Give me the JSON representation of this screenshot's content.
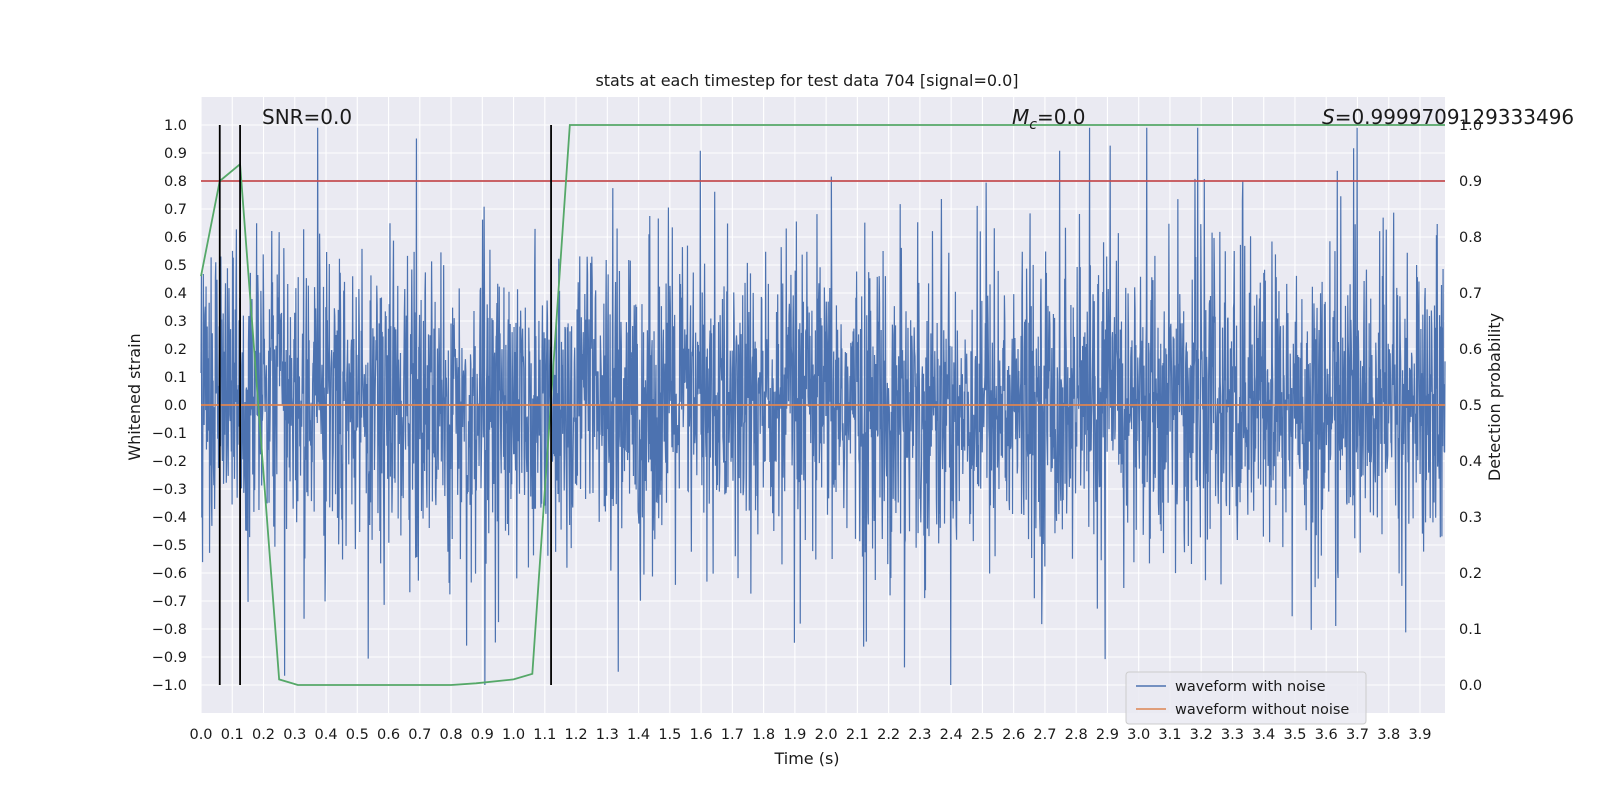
{
  "chart_data": {
    "type": "line",
    "title": "stats at each timestep for test data 704 [signal=0.0]",
    "xlabel": "Time (s)",
    "ylabel_left": "Whitened strain",
    "ylabel_right": "Detection probability",
    "xlim": [
      0.0,
      3.98
    ],
    "ylim_left": [
      -1.1,
      1.1
    ],
    "ylim_right": [
      -0.05,
      1.05
    ],
    "grid": true,
    "x_ticks": [
      "0.0",
      "0.1",
      "0.2",
      "0.3",
      "0.4",
      "0.5",
      "0.6",
      "0.7",
      "0.8",
      "0.9",
      "1.0",
      "1.1",
      "1.2",
      "1.3",
      "1.4",
      "1.5",
      "1.6",
      "1.7",
      "1.8",
      "1.9",
      "2.0",
      "2.1",
      "2.2",
      "2.3",
      "2.4",
      "2.5",
      "2.6",
      "2.7",
      "2.8",
      "2.9",
      "3.0",
      "3.1",
      "3.2",
      "3.3",
      "3.4",
      "3.5",
      "3.6",
      "3.7",
      "3.8",
      "3.9"
    ],
    "y_ticks_left": [
      "1.0",
      "0.9",
      "0.8",
      "0.7",
      "0.6",
      "0.5",
      "0.4",
      "0.3",
      "0.2",
      "0.1",
      "0.0",
      "−0.1",
      "−0.2",
      "−0.3",
      "−0.4",
      "−0.5",
      "−0.6",
      "−0.7",
      "−0.8",
      "−0.9",
      "−1.0"
    ],
    "y_ticks_right": [
      "1.0",
      "0.9",
      "0.8",
      "0.7",
      "0.6",
      "0.5",
      "0.4",
      "0.3",
      "0.2",
      "0.1",
      "0.0"
    ],
    "annotations": {
      "snr": "SNR=0.0",
      "mc_symbol": "M",
      "mc_sub": "c",
      "mc_value": "=0.0",
      "s_symbol": "S",
      "s_value": "=0.9999709129333496"
    },
    "series": [
      {
        "name": "waveform with noise",
        "axis": "left",
        "color": "#4c72b0",
        "description": "dense noise trace across 0.0–3.98 s, mostly within ±0.6 with spikes up to about 0.99 and down to -1.0"
      },
      {
        "name": "waveform without noise",
        "axis": "left",
        "color": "#dd8452",
        "x": [
          0.0,
          3.98
        ],
        "y": [
          0.0,
          0.0
        ]
      },
      {
        "axis": "right",
        "color": "#55a868",
        "x": [
          0.0,
          0.06,
          0.125,
          0.25,
          0.31,
          0.8,
          0.88,
          1.0,
          1.06,
          1.18,
          3.98
        ],
        "y": [
          0.73,
          0.9,
          0.93,
          0.01,
          0.0,
          0.0,
          0.003,
          0.01,
          0.02,
          1.0,
          1.0
        ]
      },
      {
        "axis": "right",
        "color": "#c44e52",
        "x": [
          0.0,
          3.98
        ],
        "y": [
          0.9,
          0.9
        ]
      }
    ],
    "vertical_lines": {
      "color": "#000000",
      "x": [
        0.06,
        0.125,
        1.12
      ],
      "y_range": [
        -1.0,
        1.0
      ]
    },
    "legend": {
      "location": "lower-right",
      "entries": [
        "waveform with noise",
        "waveform without noise"
      ]
    }
  }
}
